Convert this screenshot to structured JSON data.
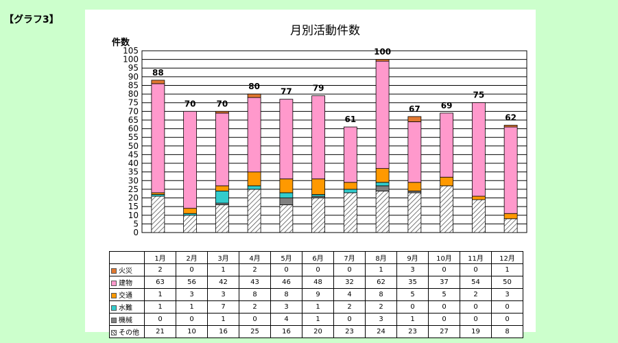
{
  "heading": "【グラフ3】",
  "chart_data": {
    "type": "bar",
    "stacked": true,
    "title": "月別活動件数",
    "ylabel": "件数",
    "ylim": [
      0,
      105
    ],
    "ytick_step": 5,
    "grid": true,
    "categories": [
      "1月",
      "2月",
      "3月",
      "4月",
      "5月",
      "6月",
      "7月",
      "8月",
      "9月",
      "10月",
      "11月",
      "12月"
    ],
    "totals": [
      88,
      70,
      70,
      80,
      77,
      79,
      61,
      100,
      67,
      69,
      75,
      62
    ],
    "series": [
      {
        "name": "その他",
        "color": "#ffffff",
        "pattern": "hatch",
        "values": [
          21,
          10,
          16,
          25,
          16,
          20,
          23,
          24,
          23,
          27,
          19,
          8
        ]
      },
      {
        "name": "機械",
        "color": "#808080",
        "values": [
          0,
          0,
          1,
          0,
          4,
          1,
          0,
          3,
          1,
          0,
          0,
          0
        ]
      },
      {
        "name": "水難",
        "color": "#33cccc",
        "values": [
          1,
          1,
          7,
          2,
          3,
          1,
          2,
          2,
          0,
          0,
          0,
          0
        ]
      },
      {
        "name": "交通",
        "color": "#ff9900",
        "values": [
          1,
          3,
          3,
          8,
          8,
          9,
          4,
          8,
          5,
          5,
          2,
          3
        ]
      },
      {
        "name": "建物",
        "color": "#ff99cc",
        "values": [
          63,
          56,
          42,
          43,
          46,
          48,
          32,
          62,
          35,
          37,
          54,
          50
        ]
      },
      {
        "name": "火災",
        "color": "#e07830",
        "values": [
          2,
          0,
          1,
          2,
          0,
          0,
          0,
          1,
          3,
          0,
          0,
          1
        ]
      }
    ],
    "table_row_order": [
      "火災",
      "建物",
      "交通",
      "水難",
      "機械",
      "その他"
    ]
  }
}
